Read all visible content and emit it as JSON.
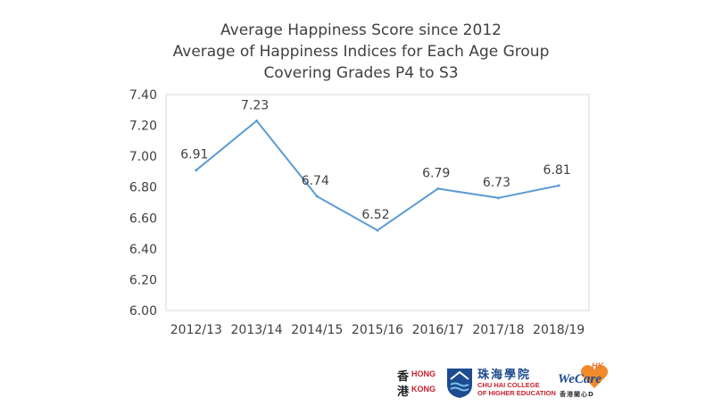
{
  "title_lines": [
    "Average Happiness Score since 2012",
    "Average of Happiness Indices for Each Age Group",
    "Covering Grades P4 to S3"
  ],
  "chart_data": {
    "type": "line",
    "categories": [
      "2012/13",
      "2013/14",
      "2014/15",
      "2015/16",
      "2016/17",
      "2017/18",
      "2018/19"
    ],
    "series": [
      {
        "values": [
          6.91,
          7.23,
          6.74,
          6.52,
          6.79,
          6.73,
          6.81
        ]
      }
    ],
    "data_labels": [
      "6.91",
      "7.23",
      "6.74",
      "6.52",
      "6.79",
      "6.73",
      "6.81"
    ],
    "y_ticks": [
      "6.00",
      "6.20",
      "6.40",
      "6.60",
      "6.80",
      "7.00",
      "7.20",
      "7.40"
    ],
    "ylim": [
      6.0,
      7.4
    ],
    "grid": false,
    "line_color": "#5b9bd5",
    "axis_color": "#d9d9d9",
    "label_color": "#404040"
  },
  "logos": {
    "hk_zh_1": "香",
    "hk_zh_2": "港",
    "hk_en_1": "HONG",
    "hk_en_2": "KONG",
    "chuhai_zh": "珠海學院",
    "chuhai_en_1": "CHU HAI COLLEGE",
    "chuhai_en_2": "OF HIGHER EDUCATION",
    "wecare_name": "WeCare",
    "wecare_tag": "HK",
    "wecare_sub": "香港關心D"
  }
}
